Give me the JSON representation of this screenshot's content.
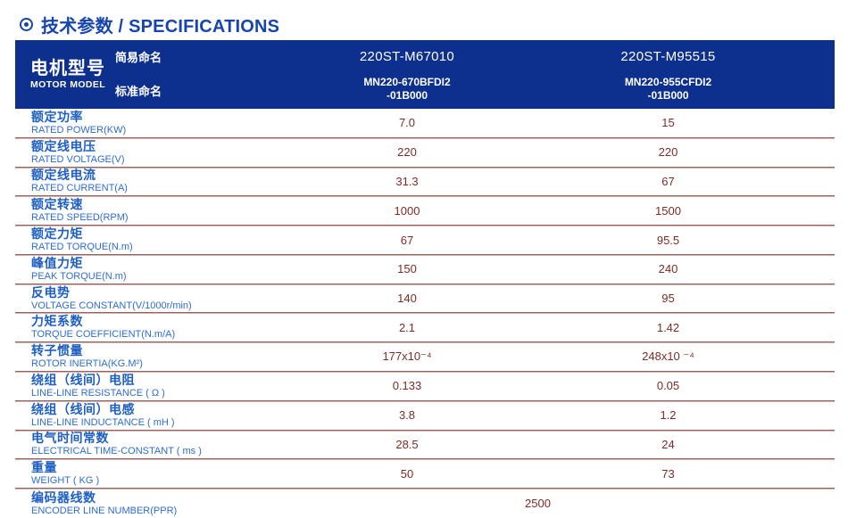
{
  "title": {
    "text": "技术参数 / SPECIFICATIONS"
  },
  "colors": {
    "title_blue": "#1745ad",
    "header_background": "#0d2f8d",
    "header_text": "#ffffff",
    "label_blue": "#1d5fc4",
    "label_sub_blue": "#2e6cd0",
    "value_maroon": "#7d2b26",
    "separator": "#96625d"
  },
  "table": {
    "header": {
      "motor_model_zh": "电机型号",
      "motor_model_en": "MOTOR MODEL",
      "simple_name_label": "简易命名",
      "standard_name_label": "标准命名",
      "models": [
        {
          "simple": "220ST-M67010",
          "standard_line1": "MN220-670BFDI2",
          "standard_line2": "-01B000"
        },
        {
          "simple": "220ST-M95515",
          "standard_line1": "MN220-955CFDI2",
          "standard_line2": "-01B000"
        }
      ]
    },
    "rows": [
      {
        "zh": "额定功率",
        "en": "RATED POWER(KW)",
        "v1": "7.0",
        "v2": "15"
      },
      {
        "zh": "额定线电压",
        "en": "RATED VOLTAGE(V)",
        "v1": "220",
        "v2": "220"
      },
      {
        "zh": "额定线电流",
        "en": "RATED CURRENT(A)",
        "v1": "31.3",
        "v2": "67"
      },
      {
        "zh": "额定转速",
        "en": "RATED SPEED(RPM)",
        "v1": "1000",
        "v2": "1500"
      },
      {
        "zh": "额定力矩",
        "en": "RATED TORQUE(N.m)",
        "v1": "67",
        "v2": "95.5"
      },
      {
        "zh": "峰值力矩",
        "en": "PEAK TORQUE(N.m)",
        "v1": "150",
        "v2": "240"
      },
      {
        "zh": "反电势",
        "en": "VOLTAGE CONSTANT(V/1000r/min)",
        "v1": "140",
        "v2": "95"
      },
      {
        "zh": "力矩系数",
        "en": "TORQUE COEFFICIENT(N.m/A)",
        "v1": "2.1",
        "v2": "1.42"
      },
      {
        "zh": "转子惯量",
        "en": "ROTOR INERTIA(KG.M²)",
        "v1": "177x10⁻⁴",
        "v2": "248x10 ⁻⁴"
      },
      {
        "zh": "绕组（线间）电阻",
        "en": "LINE-LINE RESISTANCE ( Ω )",
        "v1": "0.133",
        "v2": "0.05"
      },
      {
        "zh": "绕组（线间）电感",
        "en": "LINE-LINE INDUCTANCE ( mH )",
        "v1": "3.8",
        "v2": "1.2"
      },
      {
        "zh": "电气时间常数",
        "en": "ELECTRICAL TIME-CONSTANT ( ms )",
        "v1": "28.5",
        "v2": "24"
      },
      {
        "zh": "重量",
        "en": "WEIGHT ( KG )",
        "v1": "50",
        "v2": "73"
      },
      {
        "zh": "编码器线数",
        "en": "ENCODER LINE NUMBER(PPR)",
        "span": "2500"
      }
    ]
  }
}
